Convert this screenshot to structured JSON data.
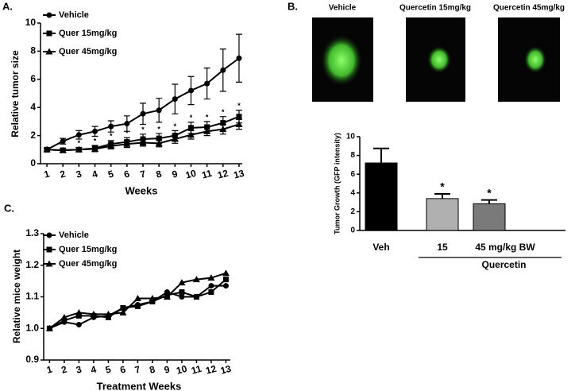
{
  "images": [
    {
      "label": "Vehicle"
    },
    {
      "label": "Quercetin 15mg/kg"
    },
    {
      "label": "Quercetin 45mg/kg"
    }
  ],
  "chart_data": [
    {
      "type": "line",
      "panel_label": "A.",
      "x_label": "Weeks",
      "y_label": "Relative tumor size",
      "x": [
        1,
        2,
        3,
        4,
        5,
        6,
        7,
        8,
        9,
        10,
        11,
        12,
        13
      ],
      "xlim": [
        0.6,
        13.2
      ],
      "xticks": [
        1,
        2,
        3,
        4,
        5,
        6,
        7,
        8,
        9,
        10,
        11,
        12,
        13
      ],
      "ylim": [
        0,
        10
      ],
      "yticks": [
        0,
        2,
        4,
        6,
        8,
        10
      ],
      "series": [
        {
          "name": "Vehicle",
          "color": "#000000",
          "marker": "circle",
          "values": [
            1.0,
            1.6,
            2.05,
            2.3,
            2.65,
            2.85,
            3.55,
            3.8,
            4.6,
            5.2,
            5.7,
            6.65,
            7.5
          ],
          "errors": [
            0.1,
            0.2,
            0.3,
            0.35,
            0.4,
            0.55,
            0.75,
            0.85,
            1.05,
            1.0,
            1.1,
            1.5,
            1.7
          ]
        },
        {
          "name": "Quer 15mg/kg",
          "color": "#000000",
          "marker": "square",
          "values": [
            1.0,
            0.95,
            1.0,
            1.1,
            1.4,
            1.55,
            1.75,
            1.8,
            2.0,
            2.55,
            2.6,
            2.9,
            3.35
          ],
          "errors": [
            0.1,
            0.15,
            0.15,
            0.2,
            0.25,
            0.3,
            0.35,
            0.35,
            0.35,
            0.4,
            0.4,
            0.45,
            0.45
          ]
        },
        {
          "name": "Quer 45mg/kg",
          "color": "#000000",
          "marker": "triangle",
          "values": [
            1.0,
            0.95,
            1.0,
            1.05,
            1.25,
            1.4,
            1.5,
            1.45,
            1.75,
            2.05,
            2.3,
            2.45,
            2.8
          ],
          "errors": [
            0.1,
            0.15,
            0.15,
            0.2,
            0.2,
            0.25,
            0.25,
            0.25,
            0.3,
            0.3,
            0.3,
            0.35,
            0.35
          ]
        }
      ],
      "significance": {
        "label": "*",
        "x": [
          3,
          4,
          5,
          6,
          7,
          8,
          9,
          10,
          11,
          12,
          13
        ]
      }
    },
    {
      "type": "bar",
      "panel_label": "B.",
      "y_label": "Tumor Growth (GFP intensity)",
      "categories": [
        "Veh",
        "15",
        "45 mg/kg BW"
      ],
      "values": [
        7.2,
        3.4,
        2.85
      ],
      "errors": [
        1.55,
        0.5,
        0.4
      ],
      "colors": [
        "#000000",
        "#b0b0b0",
        "#7a7a7a"
      ],
      "ylim": [
        0,
        10
      ],
      "yticks": [
        0,
        2,
        4,
        6,
        8,
        10
      ],
      "group_label": "Quercetin",
      "significance": {
        "label": "*",
        "categories": [
          1,
          2
        ]
      }
    },
    {
      "type": "line",
      "panel_label": "C.",
      "x_label": "Treatment Weeks",
      "y_label": "Relative mice weight",
      "x": [
        1,
        2,
        3,
        4,
        5,
        6,
        7,
        8,
        9,
        10,
        11,
        12,
        13
      ],
      "xlim": [
        0.6,
        13.3
      ],
      "xticks": [
        1,
        2,
        3,
        4,
        5,
        6,
        7,
        8,
        9,
        10,
        11,
        12,
        13
      ],
      "ylim": [
        0.9,
        1.3
      ],
      "yticks": [
        0.9,
        {
          "value": 1,
          "label": "1.0"
        },
        1.1,
        1.2,
        1.3
      ],
      "series": [
        {
          "name": "Vehicle",
          "color": "#000000",
          "marker": "circle",
          "values": [
            1.0,
            1.02,
            1.012,
            1.035,
            1.04,
            1.065,
            1.075,
            1.085,
            1.115,
            1.1,
            1.1,
            1.135,
            1.135
          ]
        },
        {
          "name": "Quer 15mg/kg",
          "color": "#000000",
          "marker": "square",
          "values": [
            1.0,
            1.025,
            1.04,
            1.04,
            1.035,
            1.065,
            1.07,
            1.085,
            1.105,
            1.115,
            1.1,
            1.115,
            1.155
          ]
        },
        {
          "name": "Quer 45mg/kg",
          "color": "#000000",
          "marker": "triangle",
          "values": [
            1.0,
            1.035,
            1.05,
            1.045,
            1.045,
            1.05,
            1.095,
            1.095,
            1.1,
            1.145,
            1.155,
            1.16,
            1.175
          ]
        }
      ]
    }
  ]
}
